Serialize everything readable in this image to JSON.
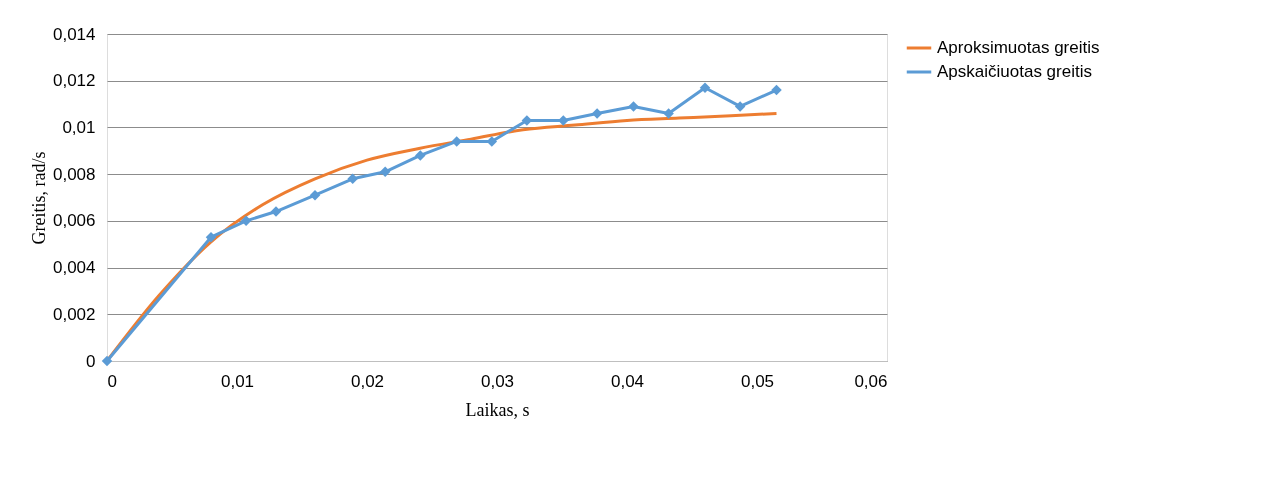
{
  "chart_data": {
    "type": "line",
    "xlabel": "Laikas, s",
    "ylabel": "Greitis, rad/s",
    "xlim": [
      0,
      0.06
    ],
    "xticks": [
      {
        "value": 0,
        "label": "0"
      },
      {
        "value": 0.01,
        "label": "0,01"
      },
      {
        "value": 0.02,
        "label": "0,02"
      },
      {
        "value": 0.03,
        "label": "0,03"
      },
      {
        "value": 0.04,
        "label": "0,04"
      },
      {
        "value": 0.05,
        "label": "0,05"
      },
      {
        "value": 0.06,
        "label": "0,06"
      }
    ],
    "ylim": [
      0,
      0.014
    ],
    "yticks": [
      {
        "value": 0,
        "label": "0"
      },
      {
        "value": 0.002,
        "label": "0,002"
      },
      {
        "value": 0.004,
        "label": "0,004"
      },
      {
        "value": 0.006,
        "label": "0,006"
      },
      {
        "value": 0.008,
        "label": "0,008"
      },
      {
        "value": 0.01,
        "label": "0,01"
      },
      {
        "value": 0.012,
        "label": "0,012"
      },
      {
        "value": 0.014,
        "label": "0,014"
      }
    ],
    "grid": "y",
    "legend": "right",
    "series": [
      {
        "name": "Aproksimuotas greitis",
        "color": "#ed7d31",
        "marker": "none",
        "x": [
          0,
          0.004,
          0.008,
          0.012,
          0.016,
          0.02,
          0.024,
          0.028,
          0.032,
          0.036,
          0.04,
          0.044,
          0.048,
          0.0515
        ],
        "values": [
          0,
          0.0028,
          0.0051,
          0.0067,
          0.0078,
          0.0086,
          0.0091,
          0.0095,
          0.0099,
          0.0101,
          0.0103,
          0.0104,
          0.0105,
          0.0106
        ]
      },
      {
        "name": "Apskaičiuotas greitis",
        "color": "#5b9bd5",
        "marker": "diamond",
        "x": [
          0,
          0.008,
          0.0107,
          0.013,
          0.016,
          0.0189,
          0.0214,
          0.0241,
          0.0269,
          0.0296,
          0.0323,
          0.0351,
          0.0377,
          0.0405,
          0.0432,
          0.046,
          0.0487,
          0.0515
        ],
        "values": [
          0,
          0.0053,
          0.006,
          0.0064,
          0.0071,
          0.0078,
          0.0081,
          0.0088,
          0.0094,
          0.0094,
          0.0103,
          0.0103,
          0.0106,
          0.0109,
          0.0106,
          0.0117,
          0.0109,
          0.0116
        ]
      }
    ]
  }
}
